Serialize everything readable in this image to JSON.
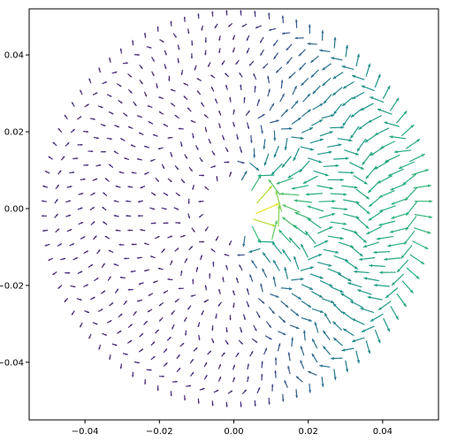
{
  "chart_data": {
    "type": "quiver",
    "title": "",
    "xlabel": "",
    "ylabel": "",
    "xlim": [
      -0.055,
      0.055
    ],
    "ylim": [
      -0.055,
      0.052
    ],
    "xticks": [
      {
        "value": -0.04,
        "label": "−0.04"
      },
      {
        "value": -0.02,
        "label": "−0.02"
      },
      {
        "value": 0.0,
        "label": "0.00"
      },
      {
        "value": 0.02,
        "label": "0.02"
      },
      {
        "value": 0.04,
        "label": "0.04"
      }
    ],
    "yticks": [
      {
        "value": -0.04,
        "label": "−0.04"
      },
      {
        "value": -0.02,
        "label": "−0.02"
      },
      {
        "value": 0.0,
        "label": "0.00"
      },
      {
        "value": 0.02,
        "label": "0.02"
      },
      {
        "value": 0.04,
        "label": "0.04"
      }
    ],
    "grid": false,
    "colormap": "viridis",
    "field": {
      "description_rings": "polar grid of arrows",
      "r_min": 0.009,
      "r_max": 0.051,
      "num_rings": 14,
      "angular_step_spacing": 0.0038,
      "exclusion_radius": 0.008
    }
  },
  "colors": {
    "frame": "#000000",
    "background": "#ffffff"
  }
}
